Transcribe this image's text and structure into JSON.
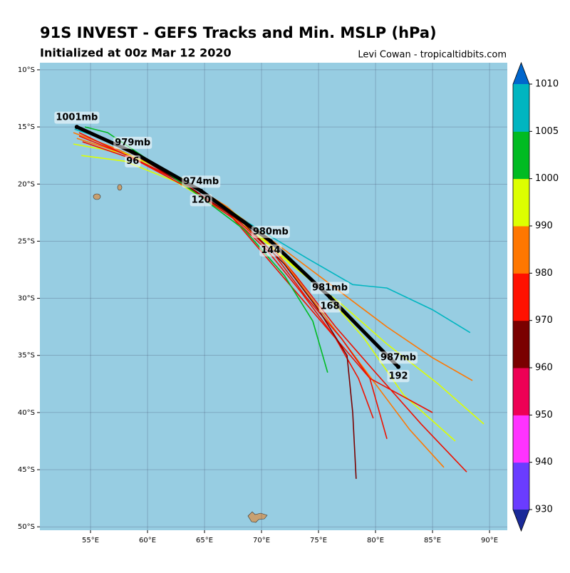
{
  "chart_data": {
    "type": "track-map",
    "title": "91S INVEST - GEFS Tracks and Min. MSLP (hPa)",
    "subtitle": "Initialized at 00z Mar 12 2020",
    "credit": "Levi Cowan - tropicaltidbits.com",
    "background": "#97cde2",
    "xlim": [
      50.56,
      91.56
    ],
    "ylim": [
      -50.3,
      -9.38
    ],
    "xticks": [
      {
        "value": 55,
        "label": "55°E"
      },
      {
        "value": 60,
        "label": "60°E"
      },
      {
        "value": 65,
        "label": "65°E"
      },
      {
        "value": 70,
        "label": "70°E"
      },
      {
        "value": 75,
        "label": "75°E"
      },
      {
        "value": 80,
        "label": "80°E"
      },
      {
        "value": 85,
        "label": "85°E"
      },
      {
        "value": 90,
        "label": "90°E"
      }
    ],
    "yticks": [
      {
        "value": -10,
        "label": "10°S"
      },
      {
        "value": -15,
        "label": "15°S"
      },
      {
        "value": -20,
        "label": "20°S"
      },
      {
        "value": -25,
        "label": "25°S"
      },
      {
        "value": -30,
        "label": "30°S"
      },
      {
        "value": -35,
        "label": "35°S"
      },
      {
        "value": -40,
        "label": "40°S"
      },
      {
        "value": -45,
        "label": "45°S"
      },
      {
        "value": -50,
        "label": "50°S"
      }
    ],
    "grid": true,
    "tracks": [
      {
        "color": "#ff7700",
        "lon": [
          53.5,
          57,
          61,
          65,
          69,
          73,
          77,
          81,
          85,
          88.5
        ],
        "lat": [
          -15.5,
          -16.8,
          -18.6,
          -20.8,
          -23.5,
          -26.5,
          -29.5,
          -32.5,
          -35.2,
          -37.2
        ]
      },
      {
        "color": "#ee1100",
        "lon": [
          54,
          58,
          62,
          66,
          70,
          73,
          76.5,
          80,
          84,
          88
        ],
        "lat": [
          -15,
          -17,
          -19,
          -21.5,
          -24.5,
          -28,
          -32.5,
          -36.5,
          -41,
          -45.2
        ]
      },
      {
        "color": "#ff7700",
        "lon": [
          53.8,
          58.5,
          63,
          67,
          71,
          74,
          77,
          80,
          83,
          86
        ],
        "lat": [
          -16,
          -17.5,
          -19.5,
          -22,
          -25.5,
          -29.5,
          -33.5,
          -37.5,
          -41.5,
          -44.8
        ]
      },
      {
        "color": "#ddff00",
        "lon": [
          54.2,
          58,
          62.5,
          67,
          71.5,
          75.5,
          79,
          82.5,
          87
        ],
        "lat": [
          -17.5,
          -18,
          -19.8,
          -22.5,
          -26,
          -29.5,
          -33.5,
          -38.5,
          -42.5
        ]
      },
      {
        "color": "#ddff00",
        "lon": [
          53.5,
          58,
          63,
          68,
          72.5,
          77,
          81,
          85.5,
          89.5
        ],
        "lat": [
          -16.5,
          -17.3,
          -19.5,
          -22.8,
          -27,
          -30.5,
          -34,
          -37.5,
          -41
        ]
      },
      {
        "color": "#00b5c0",
        "lon": [
          53.6,
          56,
          59,
          64,
          69,
          74,
          78,
          81,
          85,
          88.3
        ],
        "lat": [
          -15.2,
          -16,
          -17.2,
          -20.5,
          -23.5,
          -26.5,
          -28.8,
          -29.1,
          -31,
          -33
        ]
      },
      {
        "color": "#ee1100",
        "lon": [
          54,
          58,
          62.5,
          67,
          70.5,
          73.5,
          76.5,
          79.5,
          85
        ],
        "lat": [
          -15.5,
          -17.4,
          -19.6,
          -22.5,
          -25.8,
          -29.5,
          -33.5,
          -37,
          -40
        ]
      },
      {
        "color": "#ee1100",
        "lon": [
          54,
          58.5,
          63,
          67.5,
          71,
          74,
          77,
          79.5,
          81
        ],
        "lat": [
          -15.8,
          -17.6,
          -19.8,
          -22.8,
          -26,
          -30,
          -33.5,
          -37,
          -42.3
        ]
      },
      {
        "color": "#ee1100",
        "lon": [
          54.3,
          59,
          63.5,
          67.5,
          70.5,
          73.5,
          76.5,
          78.5,
          79.8
        ],
        "lat": [
          -16.3,
          -17.9,
          -20.3,
          -23,
          -26.5,
          -30,
          -33.5,
          -37,
          -40.5
        ]
      },
      {
        "color": "#7a0000",
        "lon": [
          54,
          59,
          64,
          68.5,
          72,
          75,
          77.5,
          78,
          78.3
        ],
        "lat": [
          -15,
          -17.5,
          -20.5,
          -23.5,
          -27,
          -31,
          -35,
          -40,
          -45.8
        ]
      },
      {
        "color": "#00bb22",
        "lon": [
          54.5,
          56.5,
          58,
          61,
          64.5,
          68.5,
          72,
          74.5,
          75.8
        ],
        "lat": [
          -15,
          -15.5,
          -16.5,
          -18.5,
          -21,
          -24,
          -28,
          -32,
          -36.5
        ]
      }
    ],
    "mean_track": {
      "lon": [
        53.8,
        58.7,
        64.7,
        70.8,
        76.0,
        82.0
      ],
      "lat": [
        -15.0,
        -17.2,
        -20.6,
        -25.0,
        -29.9,
        -36.0
      ],
      "hours": [
        null,
        96,
        120,
        144,
        168,
        192
      ],
      "mslp": [
        1001,
        979,
        974,
        980,
        981,
        987
      ],
      "mslp_labels": [
        "1001mb",
        "979mb",
        "974mb",
        "980mb",
        "981mb",
        "987mb"
      ]
    },
    "colorbar": {
      "ticks": [
        930,
        940,
        950,
        960,
        970,
        980,
        990,
        1000,
        1005,
        1010
      ],
      "colors": [
        "#6a3cff",
        "#ff33ff",
        "#ee0055",
        "#7a0000",
        "#ff1100",
        "#ff7700",
        "#ddff00",
        "#00bb22",
        "#00b5c0"
      ],
      "under": "#1a2a99",
      "over": "#0066cc"
    }
  }
}
